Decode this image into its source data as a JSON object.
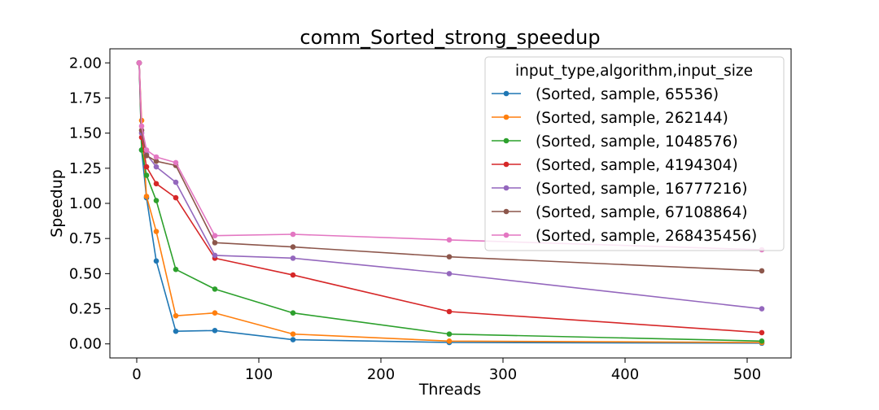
{
  "chart_data": {
    "type": "line",
    "title": "comm_Sorted_strong_speedup",
    "xlabel": "Threads",
    "ylabel": "Speedup",
    "xlim": [
      -22,
      536
    ],
    "ylim": [
      -0.1,
      2.1
    ],
    "xticks": [
      0,
      100,
      200,
      300,
      400,
      500
    ],
    "yticks": [
      0.0,
      0.25,
      0.5,
      0.75,
      1.0,
      1.25,
      1.5,
      1.75,
      2.0
    ],
    "ytick_labels": [
      "0.00",
      "0.25",
      "0.50",
      "0.75",
      "1.00",
      "1.25",
      "1.50",
      "1.75",
      "2.00"
    ],
    "xtick_labels": [
      "0",
      "100",
      "200",
      "300",
      "400",
      "500"
    ],
    "grid": false,
    "legend": {
      "title": "input_type,algorithm,input_size",
      "placement": "top-right"
    },
    "x": [
      2,
      4,
      8,
      16,
      32,
      64,
      128,
      256,
      512
    ],
    "series": [
      {
        "name": "(Sorted, sample, 65536)",
        "color": "#1f77b4",
        "values": [
          2.0,
          1.38,
          1.04,
          0.59,
          0.09,
          0.095,
          0.03,
          0.01,
          0.005
        ]
      },
      {
        "name": "(Sorted, sample, 262144)",
        "color": "#ff7f0e",
        "values": [
          2.0,
          1.59,
          1.05,
          0.8,
          0.2,
          0.22,
          0.07,
          0.02,
          0.01
        ]
      },
      {
        "name": "(Sorted, sample, 1048576)",
        "color": "#2ca02c",
        "values": [
          2.0,
          1.38,
          1.2,
          1.02,
          0.53,
          0.39,
          0.22,
          0.07,
          0.02
        ]
      },
      {
        "name": "(Sorted, sample, 4194304)",
        "color": "#d62728",
        "values": [
          2.0,
          1.47,
          1.26,
          1.14,
          1.04,
          0.61,
          0.49,
          0.23,
          0.08
        ]
      },
      {
        "name": "(Sorted, sample, 16777216)",
        "color": "#9467bd",
        "values": [
          2.0,
          1.5,
          1.35,
          1.26,
          1.15,
          0.63,
          0.61,
          0.5,
          0.25
        ]
      },
      {
        "name": "(Sorted, sample, 67108864)",
        "color": "#8c564b",
        "values": [
          2.0,
          1.52,
          1.34,
          1.3,
          1.27,
          0.72,
          0.69,
          0.62,
          0.52
        ]
      },
      {
        "name": "(Sorted, sample, 268435456)",
        "color": "#e377c2",
        "values": [
          2.0,
          1.55,
          1.38,
          1.33,
          1.29,
          0.77,
          0.78,
          0.74,
          0.67
        ]
      }
    ]
  }
}
